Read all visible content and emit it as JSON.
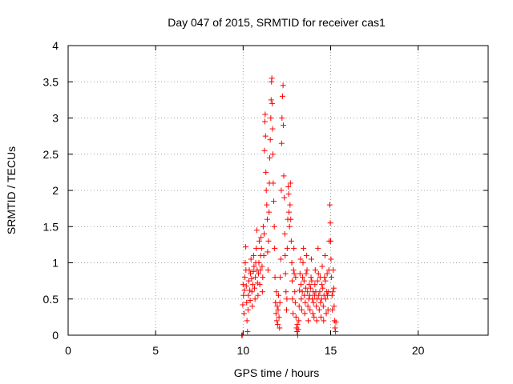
{
  "chart_data": {
    "type": "scatter",
    "title": "Day 047 of 2015, SRMTID for receiver cas1",
    "xlabel": "GPS time / hours",
    "ylabel": "SRMTID / TECUs",
    "xlim": [
      0,
      24
    ],
    "ylim": [
      0,
      4
    ],
    "xticks": [
      0,
      5,
      10,
      15,
      20
    ],
    "yticks": [
      0,
      0.5,
      1,
      1.5,
      2,
      2.5,
      3,
      3.5,
      4
    ],
    "grid": true,
    "marker": "plus",
    "color": "#ff0000",
    "series": [
      {
        "name": "SRMTID",
        "points": [
          [
            9.92,
            0.0
          ],
          [
            9.95,
            0.0
          ],
          [
            9.98,
            0.42
          ],
          [
            10.0,
            0.7
          ],
          [
            10.02,
            0.55
          ],
          [
            10.05,
            0.3
          ],
          [
            10.08,
            0.62
          ],
          [
            10.1,
            0.8
          ],
          [
            10.12,
            1.0
          ],
          [
            10.15,
            1.22
          ],
          [
            10.16,
            0.9
          ],
          [
            10.18,
            0.68
          ],
          [
            10.2,
            0.45
          ],
          [
            10.22,
            0.2
          ],
          [
            10.25,
            0.05
          ],
          [
            10.28,
            0.35
          ],
          [
            10.3,
            0.55
          ],
          [
            10.32,
            0.75
          ],
          [
            10.35,
            0.9
          ],
          [
            10.38,
            0.62
          ],
          [
            10.4,
            0.48
          ],
          [
            10.42,
            0.85
          ],
          [
            10.45,
            1.05
          ],
          [
            10.48,
            0.78
          ],
          [
            10.5,
            0.6
          ],
          [
            10.52,
            0.4
          ],
          [
            10.55,
            0.7
          ],
          [
            10.58,
            0.88
          ],
          [
            10.6,
            1.1
          ],
          [
            10.62,
            0.95
          ],
          [
            10.65,
            0.65
          ],
          [
            10.68,
            0.5
          ],
          [
            10.7,
            0.8
          ],
          [
            10.72,
            1.0
          ],
          [
            10.75,
            1.2
          ],
          [
            10.78,
            1.45
          ],
          [
            10.8,
            0.9
          ],
          [
            10.82,
            0.72
          ],
          [
            10.85,
            0.55
          ],
          [
            10.88,
            0.85
          ],
          [
            10.9,
            1.0
          ],
          [
            10.92,
            1.3
          ],
          [
            10.95,
            0.7
          ],
          [
            10.98,
            0.9
          ],
          [
            11.0,
            1.1
          ],
          [
            11.02,
            1.35
          ],
          [
            11.05,
            1.2
          ],
          [
            11.08,
            0.95
          ],
          [
            11.1,
            0.6
          ],
          [
            11.12,
            0.8
          ],
          [
            11.15,
            1.5
          ],
          [
            11.18,
            1.1
          ],
          [
            11.2,
            1.4
          ],
          [
            11.22,
            2.55
          ],
          [
            11.24,
            2.95
          ],
          [
            11.26,
            3.05
          ],
          [
            11.28,
            2.75
          ],
          [
            11.3,
            2.25
          ],
          [
            11.32,
            2.0
          ],
          [
            11.35,
            1.8
          ],
          [
            11.38,
            1.6
          ],
          [
            11.4,
            1.15
          ],
          [
            11.42,
            0.9
          ],
          [
            11.45,
            1.3
          ],
          [
            11.48,
            1.7
          ],
          [
            11.5,
            2.1
          ],
          [
            11.52,
            2.45
          ],
          [
            11.55,
            2.7
          ],
          [
            11.58,
            3.0
          ],
          [
            11.6,
            3.25
          ],
          [
            11.62,
            3.5
          ],
          [
            11.64,
            3.55
          ],
          [
            11.66,
            3.2
          ],
          [
            11.68,
            2.85
          ],
          [
            11.7,
            2.5
          ],
          [
            11.72,
            2.1
          ],
          [
            11.75,
            1.85
          ],
          [
            11.78,
            1.5
          ],
          [
            11.8,
            1.2
          ],
          [
            11.82,
            0.8
          ],
          [
            11.85,
            0.45
          ],
          [
            11.88,
            0.3
          ],
          [
            11.9,
            0.6
          ],
          [
            11.92,
            0.2
          ],
          [
            11.95,
            0.4
          ],
          [
            11.98,
            0.15
          ],
          [
            12.0,
            0.35
          ],
          [
            12.02,
            0.55
          ],
          [
            12.05,
            0.25
          ],
          [
            12.08,
            0.1
          ],
          [
            12.1,
            0.45
          ],
          [
            12.12,
            0.8
          ],
          [
            12.15,
            1.05
          ],
          [
            12.18,
            2.0
          ],
          [
            12.2,
            2.65
          ],
          [
            12.22,
            3.0
          ],
          [
            12.25,
            3.3
          ],
          [
            12.28,
            3.45
          ],
          [
            12.3,
            2.9
          ],
          [
            12.32,
            2.2
          ],
          [
            12.35,
            1.9
          ],
          [
            12.38,
            1.4
          ],
          [
            12.4,
            1.1
          ],
          [
            12.42,
            0.85
          ],
          [
            12.45,
            0.6
          ],
          [
            12.48,
            0.35
          ],
          [
            12.5,
            0.5
          ],
          [
            12.52,
            1.2
          ],
          [
            12.55,
            1.6
          ],
          [
            12.58,
            2.05
          ],
          [
            12.6,
            1.95
          ],
          [
            12.62,
            1.7
          ],
          [
            12.65,
            1.5
          ],
          [
            12.68,
            1.8
          ],
          [
            12.7,
            2.1
          ],
          [
            12.72,
            1.6
          ],
          [
            12.75,
            1.3
          ],
          [
            12.78,
            1.0
          ],
          [
            12.8,
            0.75
          ],
          [
            12.82,
            0.5
          ],
          [
            12.85,
            0.3
          ],
          [
            12.88,
            0.9
          ],
          [
            12.9,
            1.2
          ],
          [
            12.92,
            0.85
          ],
          [
            12.95,
            0.6
          ],
          [
            12.98,
            0.45
          ],
          [
            13.0,
            0.8
          ],
          [
            13.02,
            0.25
          ],
          [
            13.05,
            0.1
          ],
          [
            13.08,
            0.05
          ],
          [
            13.1,
            0.15
          ],
          [
            13.12,
            0.0
          ],
          [
            13.15,
            0.08
          ],
          [
            13.18,
            0.2
          ],
          [
            13.2,
            0.4
          ],
          [
            13.22,
            0.62
          ],
          [
            13.25,
            0.85
          ],
          [
            13.28,
            1.05
          ],
          [
            13.3,
            0.7
          ],
          [
            13.32,
            0.5
          ],
          [
            13.35,
            0.35
          ],
          [
            13.38,
            0.6
          ],
          [
            13.4,
            0.8
          ],
          [
            13.42,
            1.0
          ],
          [
            13.45,
            1.2
          ],
          [
            13.48,
            0.75
          ],
          [
            13.5,
            0.55
          ],
          [
            13.52,
            0.3
          ],
          [
            13.55,
            0.45
          ],
          [
            13.58,
            0.65
          ],
          [
            13.6,
            0.85
          ],
          [
            13.62,
            1.1
          ],
          [
            13.65,
            0.9
          ],
          [
            13.68,
            0.6
          ],
          [
            13.7,
            0.4
          ],
          [
            13.72,
            0.2
          ],
          [
            13.75,
            0.5
          ],
          [
            13.78,
            0.7
          ],
          [
            13.8,
            0.55
          ],
          [
            13.82,
            0.35
          ],
          [
            13.85,
            0.65
          ],
          [
            13.88,
            0.8
          ],
          [
            13.9,
            1.05
          ],
          [
            13.92,
            0.75
          ],
          [
            13.95,
            0.5
          ],
          [
            13.98,
            0.3
          ],
          [
            14.0,
            0.6
          ],
          [
            14.02,
            0.45
          ],
          [
            14.05,
            0.25
          ],
          [
            14.08,
            0.55
          ],
          [
            14.1,
            0.7
          ],
          [
            14.12,
            0.9
          ],
          [
            14.15,
            0.6
          ],
          [
            14.18,
            0.4
          ],
          [
            14.2,
            0.2
          ],
          [
            14.22,
            0.5
          ],
          [
            14.25,
            0.75
          ],
          [
            14.28,
            1.2
          ],
          [
            14.3,
            0.85
          ],
          [
            14.32,
            0.55
          ],
          [
            14.35,
            0.35
          ],
          [
            14.38,
            0.6
          ],
          [
            14.4,
            0.8
          ],
          [
            14.42,
            0.45
          ],
          [
            14.45,
            0.25
          ],
          [
            14.48,
            0.5
          ],
          [
            14.5,
            0.7
          ],
          [
            14.52,
            0.95
          ],
          [
            14.55,
            0.65
          ],
          [
            14.58,
            0.4
          ],
          [
            14.6,
            0.2
          ],
          [
            14.62,
            0.55
          ],
          [
            14.65,
            0.8
          ],
          [
            14.68,
            1.1
          ],
          [
            14.7,
            0.75
          ],
          [
            14.72,
            0.5
          ],
          [
            14.75,
            0.3
          ],
          [
            14.78,
            0.6
          ],
          [
            14.8,
            0.85
          ],
          [
            14.82,
            0.55
          ],
          [
            14.85,
            0.35
          ],
          [
            14.88,
            0.6
          ],
          [
            14.9,
            0.9
          ],
          [
            14.92,
            1.3
          ],
          [
            14.95,
            1.8
          ],
          [
            14.98,
            1.55
          ],
          [
            15.0,
            1.3
          ],
          [
            15.02,
            1.05
          ],
          [
            15.05,
            0.8
          ],
          [
            15.08,
            0.55
          ],
          [
            15.1,
            0.35
          ],
          [
            15.12,
            0.6
          ],
          [
            15.15,
            0.9
          ],
          [
            15.18,
            0.65
          ],
          [
            15.2,
            0.4
          ],
          [
            15.22,
            0.2
          ],
          [
            15.25,
            0.1
          ],
          [
            15.28,
            0.05
          ],
          [
            15.3,
            0.18
          ]
        ]
      }
    ]
  }
}
